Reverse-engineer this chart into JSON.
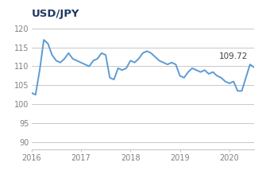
{
  "title": "USD/JPY",
  "title_color": "#1F3864",
  "title_fontsize": 9.5,
  "title_bold": true,
  "line_color": "#5B9BD5",
  "line_width": 1.4,
  "background_color": "#ffffff",
  "grid_color": "#c8c8c8",
  "label_color": "#808080",
  "label_fontsize": 7,
  "annotation": "109.72",
  "annotation_color": "#404040",
  "annotation_fontsize": 7.5,
  "ylim": [
    88,
    122
  ],
  "yticks": [
    90,
    95,
    100,
    105,
    110,
    115,
    120
  ],
  "xtick_labels": [
    "2016",
    "2017",
    "2018",
    "2019",
    "2020"
  ],
  "xtick_positions": [
    0,
    12,
    24,
    36,
    48
  ],
  "x_values": [
    0,
    1,
    2,
    3,
    4,
    5,
    6,
    7,
    8,
    9,
    10,
    11,
    12,
    13,
    14,
    15,
    16,
    17,
    18,
    19,
    20,
    21,
    22,
    23,
    24,
    25,
    26,
    27,
    28,
    29,
    30,
    31,
    32,
    33,
    34,
    35,
    36,
    37,
    38,
    39,
    40,
    41,
    42,
    43,
    44,
    45,
    46,
    47,
    48,
    49,
    50,
    51,
    52,
    53,
    54
  ],
  "y_values": [
    103.0,
    102.5,
    109.0,
    117.0,
    116.0,
    113.0,
    111.5,
    111.0,
    112.0,
    113.5,
    112.0,
    111.5,
    111.0,
    110.5,
    110.0,
    111.5,
    112.0,
    113.5,
    113.0,
    107.0,
    106.5,
    109.5,
    109.0,
    109.5,
    111.5,
    111.0,
    112.0,
    113.5,
    114.0,
    113.5,
    112.5,
    111.5,
    111.0,
    110.5,
    111.0,
    110.5,
    107.5,
    107.0,
    108.5,
    109.5,
    109.0,
    108.5,
    109.0,
    108.0,
    108.5,
    107.5,
    107.0,
    106.0,
    105.5,
    106.0,
    103.5,
    103.5,
    107.0,
    110.5,
    109.72
  ],
  "xlim": [
    0,
    54
  ]
}
